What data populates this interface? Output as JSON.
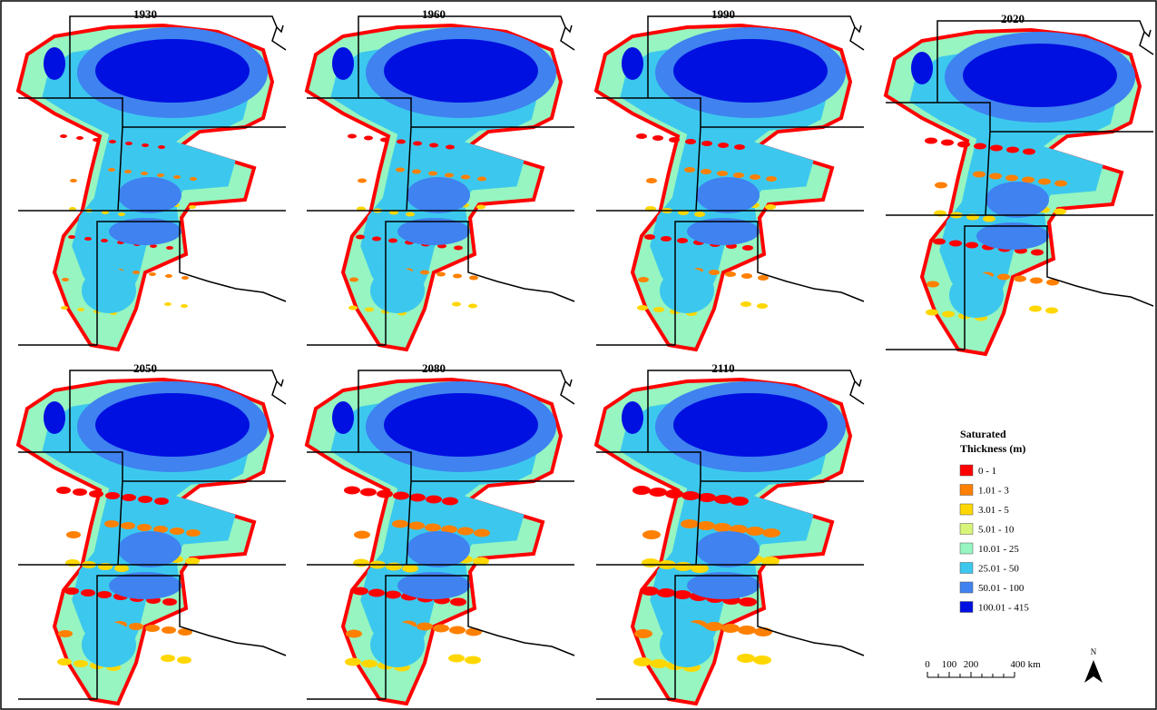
{
  "panels": [
    {
      "title": "1930"
    },
    {
      "title": "1960"
    },
    {
      "title": "1990"
    },
    {
      "title": "2020"
    },
    {
      "title": "2050"
    },
    {
      "title": "2080"
    },
    {
      "title": "2110"
    }
  ],
  "legend": {
    "title": [
      "Saturated",
      "Thickness (m)"
    ],
    "classes": [
      {
        "label": "0 - 1",
        "color": "#ff0000"
      },
      {
        "label": "1.01 - 3",
        "color": "#ff8000"
      },
      {
        "label": "3.01 - 5",
        "color": "#ffd700"
      },
      {
        "label": "5.01 - 10",
        "color": "#d8f57a"
      },
      {
        "label": "10.01 - 25",
        "color": "#96f5c0"
      },
      {
        "label": "25.01 - 50",
        "color": "#3cc8ee"
      },
      {
        "label": "50.01 - 100",
        "color": "#3f82f0"
      },
      {
        "label": "100.01 - 415",
        "color": "#0010e0"
      }
    ]
  },
  "scale_bar": {
    "labels": [
      "0",
      "100",
      "200",
      "400 km"
    ]
  },
  "north_arrow": {
    "label": "N"
  }
}
